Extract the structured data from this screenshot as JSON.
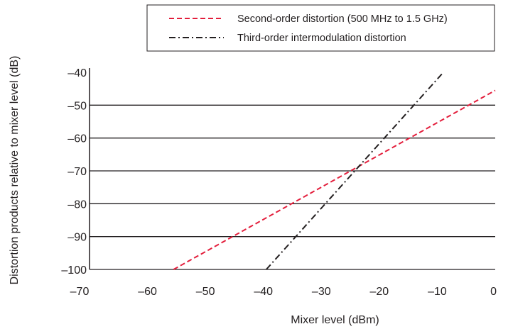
{
  "chart_data": {
    "type": "line",
    "xlabel": "Mixer level (dBm)",
    "ylabel": "Distortion products relative to mixer level (dB)",
    "xlim": [
      -70,
      0
    ],
    "ylim": [
      -100,
      -40
    ],
    "x_ticks": [
      -70,
      -60,
      -50,
      -40,
      -30,
      -20,
      -10,
      0
    ],
    "x_tick_labels": [
      "–70",
      "–60",
      "–50",
      "–40",
      "–30",
      "–20",
      "–10",
      "0"
    ],
    "y_ticks": [
      -40,
      -50,
      -60,
      -70,
      -80,
      -90,
      -100
    ],
    "y_tick_labels": [
      "–40",
      "–50",
      "–60",
      "–70",
      "–80",
      "–90",
      "–100"
    ],
    "grid": "horizontal",
    "legend_position": "top-right",
    "series": [
      {
        "name": "Second-order distortion (500 MHz to 1.5 GHz)",
        "style": "dashed",
        "color": "#e31e3c",
        "points": [
          [
            -55.5,
            -100
          ],
          [
            0,
            -45.5
          ]
        ]
      },
      {
        "name": "Third-order intermodulation distortion",
        "style": "dash-dot",
        "color": "#231f20",
        "points": [
          [
            -39.5,
            -100
          ],
          [
            -9.2,
            -40.5
          ]
        ]
      }
    ]
  }
}
